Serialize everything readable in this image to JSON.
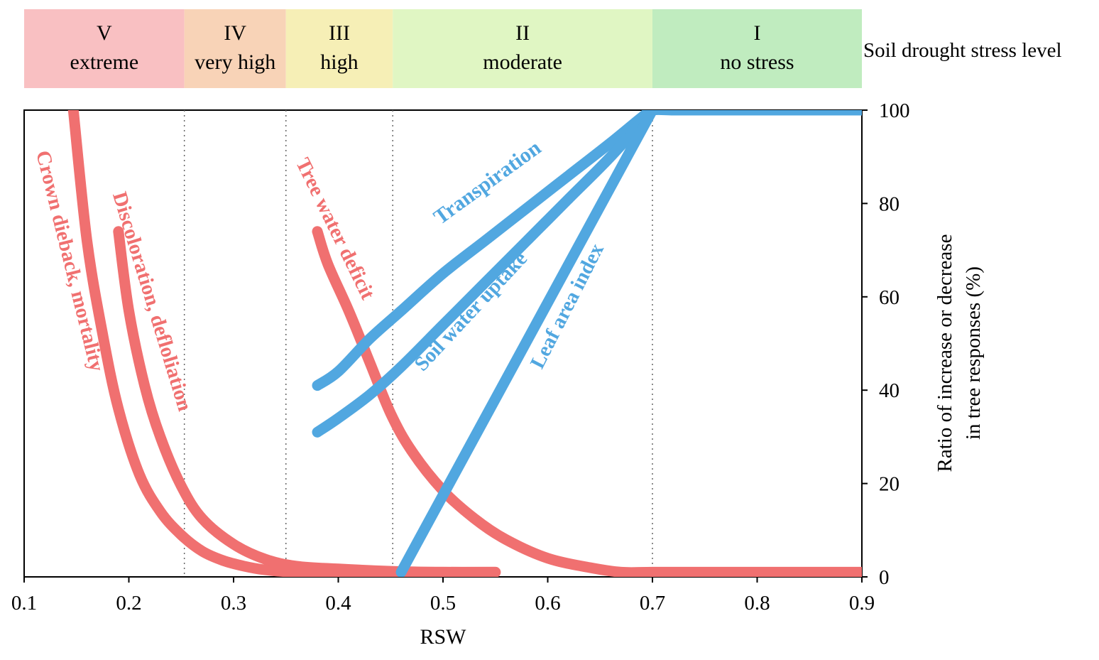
{
  "chart_data": {
    "type": "line",
    "xlabel": "RSW",
    "ylabel_lines": [
      "Ratio of increase or decrease",
      "in tree responses (%)"
    ],
    "xlim": [
      0.1,
      0.9
    ],
    "ylim": [
      0,
      100
    ],
    "x_ticks": [
      "0.1",
      "0.2",
      "0.3",
      "0.4",
      "0.5",
      "0.6",
      "0.7",
      "0.8",
      "0.9"
    ],
    "y_ticks": [
      "0",
      "20",
      "40",
      "60",
      "80",
      "100"
    ],
    "y_axis_side": "right",
    "stress_levels": {
      "title": "Soil drought stress level",
      "bands": [
        {
          "numeral": "V",
          "label": "extreme",
          "x_range": [
            0.1,
            0.253
          ],
          "color": "#f9c0c2"
        },
        {
          "numeral": "IV",
          "label": "very high",
          "x_range": [
            0.253,
            0.35
          ],
          "color": "#f8d3b7"
        },
        {
          "numeral": "III",
          "label": "high",
          "x_range": [
            0.35,
            0.452
          ],
          "color": "#f6efb6"
        },
        {
          "numeral": "II",
          "label": "moderate",
          "x_range": [
            0.452,
            0.7
          ],
          "color": "#e0f6c3"
        },
        {
          "numeral": "I",
          "label": "no stress",
          "x_range": [
            0.7,
            0.9
          ],
          "color": "#c0ecbf"
        }
      ],
      "boundaries": [
        0.253,
        0.35,
        0.452,
        0.7
      ]
    },
    "series": [
      {
        "name": "Crown dieback, mortality",
        "color": "#f07070",
        "x": [
          0.147,
          0.16,
          0.175,
          0.19,
          0.21,
          0.23,
          0.25,
          0.27,
          0.29,
          0.31,
          0.33,
          0.36,
          0.4,
          0.45,
          0.5,
          0.55
        ],
        "y": [
          100,
          72,
          52,
          36,
          22,
          14,
          9,
          5.5,
          3.5,
          2.3,
          1.5,
          1,
          1,
          1,
          1,
          1
        ]
      },
      {
        "name": "Discoloration, defloliation",
        "color": "#f07070",
        "x": [
          0.19,
          0.2,
          0.215,
          0.23,
          0.25,
          0.27,
          0.3,
          0.33,
          0.36,
          0.4,
          0.45,
          0.5,
          0.55
        ],
        "y": [
          74,
          57,
          41,
          30,
          19.5,
          12.5,
          7,
          3.8,
          2.3,
          1.7,
          1.2,
          1,
          1
        ]
      },
      {
        "name": "Tree water deficit",
        "color": "#f07070",
        "x": [
          0.38,
          0.39,
          0.41,
          0.43,
          0.45,
          0.47,
          0.5,
          0.53,
          0.56,
          0.6,
          0.64,
          0.67,
          0.7,
          0.75,
          0.8,
          0.85,
          0.9
        ],
        "y": [
          74,
          67,
          57,
          46,
          35,
          27,
          18.5,
          12.5,
          8,
          4,
          2,
          1,
          1,
          1,
          1,
          1,
          1
        ]
      },
      {
        "name": "Transpiration",
        "color": "#51a7e0",
        "x": [
          0.38,
          0.4,
          0.43,
          0.46,
          0.5,
          0.54,
          0.58,
          0.62,
          0.66,
          0.69,
          0.7,
          0.72,
          0.75,
          0.8,
          0.85,
          0.9
        ],
        "y": [
          41,
          44,
          51,
          57,
          65,
          72,
          79,
          86,
          93,
          98.5,
          100,
          100,
          100,
          100,
          100,
          100
        ]
      },
      {
        "name": "Soil water uptake",
        "color": "#51a7e0",
        "x": [
          0.38,
          0.4,
          0.43,
          0.46,
          0.5,
          0.54,
          0.58,
          0.62,
          0.66,
          0.7
        ],
        "y": [
          31,
          34,
          39,
          45,
          54,
          63,
          72,
          81,
          90,
          100
        ]
      },
      {
        "name": "Leaf area index",
        "color": "#51a7e0",
        "x": [
          0.46,
          0.7
        ],
        "y": [
          1,
          100
        ]
      }
    ]
  }
}
